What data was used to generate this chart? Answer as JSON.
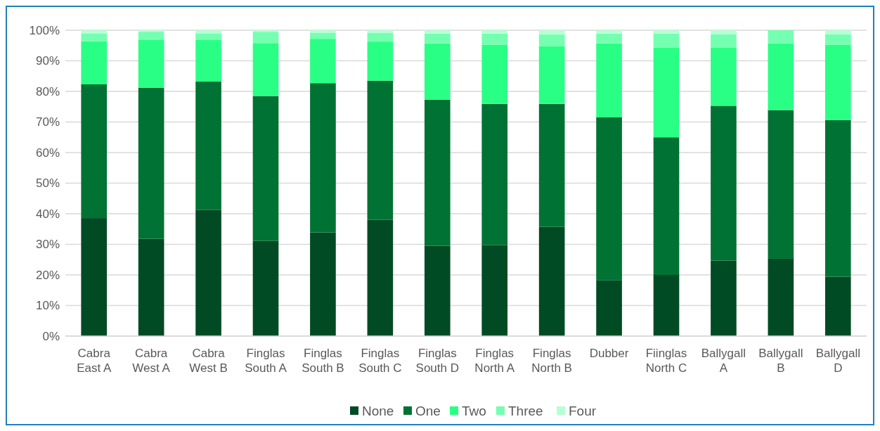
{
  "chart_data": {
    "type": "bar",
    "stacked": true,
    "categories": [
      "Cabra East A",
      "Cabra West A",
      "Cabra West B",
      "Finglas South A",
      "Finglas South B",
      "Finglas South C",
      "Finglas South D",
      "Finglas North A",
      "Finglas North B",
      "Dubber",
      "Fiinglas North C",
      "Ballygall A",
      "Ballygall B",
      "Ballygall D"
    ],
    "series": [
      {
        "name": "None",
        "color": "#004b23",
        "values": [
          38.6,
          31.8,
          41.3,
          31.1,
          33.9,
          38.0,
          29.5,
          29.8,
          35.7,
          18.2,
          20.0,
          24.7,
          25.3,
          19.4
        ]
      },
      {
        "name": "One",
        "color": "#007233",
        "values": [
          43.7,
          49.4,
          41.9,
          47.4,
          48.8,
          45.5,
          47.8,
          46.1,
          40.2,
          53.3,
          45.0,
          50.6,
          48.6,
          51.2
        ]
      },
      {
        "name": "Two",
        "color": "#2aff85",
        "values": [
          14.1,
          15.6,
          13.7,
          17.3,
          14.5,
          12.8,
          18.4,
          19.3,
          18.9,
          24.2,
          29.3,
          19.0,
          21.8,
          24.6
        ]
      },
      {
        "name": "Three",
        "color": "#75ffb0",
        "values": [
          2.6,
          2.7,
          2.1,
          3.7,
          2.0,
          2.9,
          3.2,
          3.7,
          3.8,
          3.2,
          4.6,
          4.4,
          4.3,
          3.5
        ]
      },
      {
        "name": "Four",
        "color": "#b7ffd5",
        "values": [
          1.0,
          0.5,
          1.0,
          0.5,
          0.8,
          0.8,
          1.1,
          1.1,
          1.4,
          1.1,
          1.1,
          1.3,
          0,
          1.3
        ]
      }
    ],
    "ylim": [
      0,
      100
    ],
    "yticks": [
      {
        "value": 0,
        "label": "0%"
      },
      {
        "value": 10,
        "label": "10%"
      },
      {
        "value": 20,
        "label": "20%"
      },
      {
        "value": 30,
        "label": "30%"
      },
      {
        "value": 40,
        "label": "40%"
      },
      {
        "value": 50,
        "label": "50%"
      },
      {
        "value": 60,
        "label": "60%"
      },
      {
        "value": 70,
        "label": "70%"
      },
      {
        "value": 80,
        "label": "80%"
      },
      {
        "value": 90,
        "label": "90%"
      },
      {
        "value": 100,
        "label": "100%"
      }
    ],
    "grid": "y",
    "legend": "bottom"
  }
}
